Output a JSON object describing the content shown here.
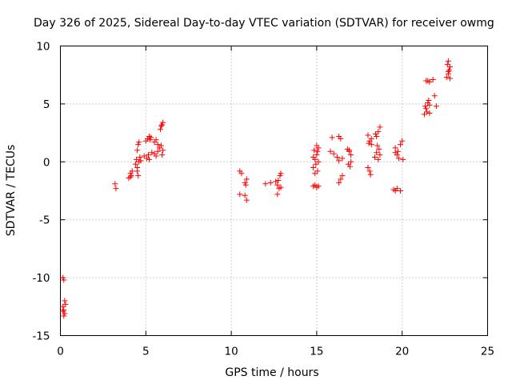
{
  "chart_data": {
    "type": "scatter",
    "title": "Day 326 of 2025, Sidereal Day-to-day VTEC variation (SDTVAR) for receiver owmg",
    "xlabel": "GPS time / hours",
    "ylabel": "SDTVAR / TECUs",
    "xlim": [
      0,
      25
    ],
    "ylim": [
      -15,
      10
    ],
    "xticks": [
      "0",
      "5",
      "10",
      "15",
      "20",
      "25"
    ],
    "yticks": [
      "-15",
      "-10",
      "-5",
      "0",
      "5",
      "10"
    ],
    "xtick_values": [
      0,
      5,
      10,
      15,
      20,
      25
    ],
    "ytick_values": [
      -15,
      -10,
      -5,
      0,
      5,
      10
    ],
    "grid": true,
    "marker": "plus",
    "color": "#ff0000",
    "series": [
      {
        "name": "SDTVAR",
        "points": [
          [
            0.15,
            -10.0
          ],
          [
            0.2,
            -10.2
          ],
          [
            0.25,
            -12.0
          ],
          [
            0.15,
            -12.5
          ],
          [
            0.2,
            -12.8
          ],
          [
            0.25,
            -13.1
          ],
          [
            0.2,
            -13.3
          ],
          [
            0.3,
            -12.3
          ],
          [
            0.15,
            -12.9
          ],
          [
            3.2,
            -1.9
          ],
          [
            3.25,
            -2.3
          ],
          [
            4.0,
            -1.4
          ],
          [
            4.1,
            -1.0
          ],
          [
            4.15,
            -1.2
          ],
          [
            4.2,
            -0.8
          ],
          [
            4.1,
            -1.3
          ],
          [
            4.4,
            -0.2
          ],
          [
            4.45,
            0.2
          ],
          [
            4.5,
            -0.5
          ],
          [
            4.55,
            -1.2
          ],
          [
            4.6,
            0.0
          ],
          [
            4.5,
            1.0
          ],
          [
            4.55,
            1.5
          ],
          [
            4.6,
            1.7
          ],
          [
            4.65,
            0.4
          ],
          [
            4.5,
            -0.8
          ],
          [
            4.7,
            0.1
          ],
          [
            4.9,
            0.5
          ],
          [
            5.0,
            1.8
          ],
          [
            5.1,
            2.0
          ],
          [
            5.2,
            2.2
          ],
          [
            5.3,
            2.1
          ],
          [
            5.05,
            0.3
          ],
          [
            5.15,
            0.6
          ],
          [
            5.25,
            1.9
          ],
          [
            5.35,
            0.8
          ],
          [
            5.2,
            0.2
          ],
          [
            5.5,
            1.7
          ],
          [
            5.6,
            1.9
          ],
          [
            5.7,
            1.5
          ],
          [
            5.8,
            1.2
          ],
          [
            5.6,
            0.5
          ],
          [
            5.7,
            0.9
          ],
          [
            5.9,
            1.4
          ],
          [
            5.95,
            0.6
          ],
          [
            5.5,
            0.7
          ],
          [
            6.0,
            1.0
          ],
          [
            5.85,
            2.8
          ],
          [
            5.9,
            3.1
          ],
          [
            6.0,
            3.4
          ],
          [
            5.95,
            3.2
          ],
          [
            10.5,
            -0.8
          ],
          [
            10.6,
            -1.0
          ],
          [
            10.5,
            -2.8
          ],
          [
            10.8,
            -2.9
          ],
          [
            10.9,
            -3.3
          ],
          [
            10.85,
            -2.0
          ],
          [
            10.9,
            -1.5
          ],
          [
            10.8,
            -1.8
          ],
          [
            12.0,
            -1.9
          ],
          [
            12.3,
            -1.8
          ],
          [
            12.6,
            -1.7
          ],
          [
            12.7,
            -2.0
          ],
          [
            12.8,
            -2.3
          ],
          [
            12.9,
            -2.2
          ],
          [
            12.7,
            -2.8
          ],
          [
            12.9,
            -1.0
          ],
          [
            12.85,
            -1.2
          ],
          [
            12.75,
            -1.6
          ],
          [
            14.8,
            -2.1
          ],
          [
            14.9,
            -2.0
          ],
          [
            15.0,
            -2.2
          ],
          [
            15.1,
            -2.1
          ],
          [
            14.8,
            -0.5
          ],
          [
            14.9,
            0.2
          ],
          [
            15.0,
            0.6
          ],
          [
            15.1,
            1.2
          ],
          [
            14.85,
            1.0
          ],
          [
            14.95,
            -0.2
          ],
          [
            15.05,
            -0.8
          ],
          [
            15.0,
            1.4
          ],
          [
            14.9,
            -1.0
          ],
          [
            15.1,
            0.0
          ],
          [
            14.8,
            0.4
          ],
          [
            15.05,
            0.9
          ],
          [
            15.8,
            0.9
          ],
          [
            15.9,
            2.1
          ],
          [
            16.0,
            0.7
          ],
          [
            16.2,
            0.4
          ],
          [
            16.3,
            2.2
          ],
          [
            16.4,
            2.0
          ],
          [
            16.5,
            0.3
          ],
          [
            16.3,
            -1.8
          ],
          [
            16.4,
            -1.5
          ],
          [
            16.5,
            -1.2
          ],
          [
            16.3,
            0.1
          ],
          [
            16.8,
            1.1
          ],
          [
            16.9,
            0.9
          ],
          [
            17.0,
            0.6
          ],
          [
            16.85,
            -0.2
          ],
          [
            16.95,
            -0.4
          ],
          [
            17.0,
            0.0
          ],
          [
            16.9,
            1.0
          ],
          [
            18.0,
            2.3
          ],
          [
            18.1,
            1.8
          ],
          [
            18.2,
            1.5
          ],
          [
            18.0,
            -0.5
          ],
          [
            18.1,
            -0.8
          ],
          [
            18.15,
            -1.1
          ],
          [
            18.05,
            1.6
          ],
          [
            18.2,
            2.0
          ],
          [
            18.4,
            0.4
          ],
          [
            18.5,
            0.8
          ],
          [
            18.6,
            2.6
          ],
          [
            18.7,
            3.0
          ],
          [
            18.55,
            1.4
          ],
          [
            18.65,
            1.1
          ],
          [
            18.5,
            2.2
          ],
          [
            18.7,
            0.6
          ],
          [
            18.6,
            0.2
          ],
          [
            18.45,
            2.4
          ],
          [
            19.5,
            -2.4
          ],
          [
            19.6,
            -2.5
          ],
          [
            19.7,
            -2.3
          ],
          [
            19.9,
            -2.5
          ],
          [
            19.6,
            1.2
          ],
          [
            19.7,
            0.6
          ],
          [
            19.8,
            0.3
          ],
          [
            19.9,
            1.5
          ],
          [
            20.0,
            1.8
          ],
          [
            20.05,
            0.2
          ],
          [
            19.75,
            0.9
          ],
          [
            19.6,
            0.8
          ],
          [
            21.3,
            4.1
          ],
          [
            21.4,
            4.6
          ],
          [
            21.5,
            5.1
          ],
          [
            21.6,
            4.9
          ],
          [
            21.45,
            4.3
          ],
          [
            21.55,
            5.3
          ],
          [
            21.35,
            4.8
          ],
          [
            21.6,
            4.2
          ],
          [
            21.5,
            7.0
          ],
          [
            21.4,
            7.0
          ],
          [
            21.6,
            6.9
          ],
          [
            21.8,
            7.1
          ],
          [
            21.9,
            5.7
          ],
          [
            22.0,
            4.8
          ],
          [
            22.6,
            7.3
          ],
          [
            22.7,
            7.6
          ],
          [
            22.8,
            8.2
          ],
          [
            22.7,
            8.7
          ],
          [
            22.75,
            7.9
          ],
          [
            22.65,
            8.4
          ],
          [
            22.8,
            7.2
          ],
          [
            22.7,
            7.8
          ]
        ]
      }
    ]
  }
}
